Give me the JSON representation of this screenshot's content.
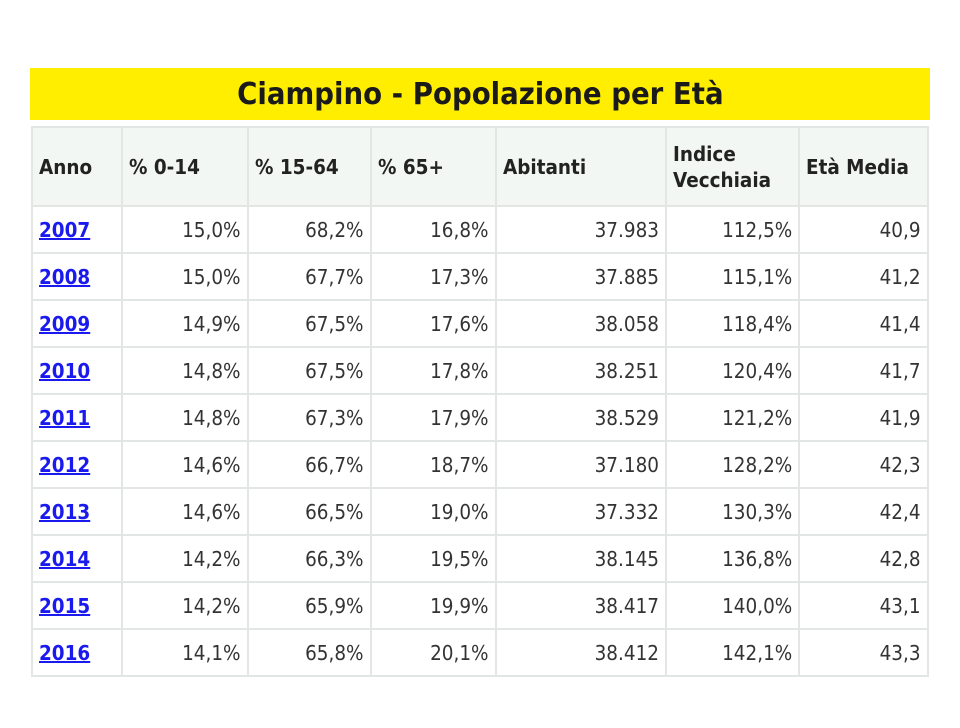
{
  "title": "Ciampino - Popolazione per Età",
  "colors": {
    "title_background": "#ffee00",
    "header_background": "#f3f7f3",
    "link": "#1a1aee",
    "border": "#e3e7e3"
  },
  "table": {
    "headers": [
      "Anno",
      "% 0-14",
      "% 15-64",
      "% 65+",
      "Abitanti",
      "Indice Vecchiaia",
      "Età Media"
    ],
    "rows": [
      [
        "2007",
        "15,0%",
        "68,2%",
        "16,8%",
        "37.983",
        "112,5%",
        "40,9"
      ],
      [
        "2008",
        "15,0%",
        "67,7%",
        "17,3%",
        "37.885",
        "115,1%",
        "41,2"
      ],
      [
        "2009",
        "14,9%",
        "67,5%",
        "17,6%",
        "38.058",
        "118,4%",
        "41,4"
      ],
      [
        "2010",
        "14,8%",
        "67,5%",
        "17,8%",
        "38.251",
        "120,4%",
        "41,7"
      ],
      [
        "2011",
        "14,8%",
        "67,3%",
        "17,9%",
        "38.529",
        "121,2%",
        "41,9"
      ],
      [
        "2012",
        "14,6%",
        "66,7%",
        "18,7%",
        "37.180",
        "128,2%",
        "42,3"
      ],
      [
        "2013",
        "14,6%",
        "66,5%",
        "19,0%",
        "37.332",
        "130,3%",
        "42,4"
      ],
      [
        "2014",
        "14,2%",
        "66,3%",
        "19,5%",
        "38.145",
        "136,8%",
        "42,8"
      ],
      [
        "2015",
        "14,2%",
        "65,9%",
        "19,9%",
        "38.417",
        "140,0%",
        "43,1"
      ],
      [
        "2016",
        "14,1%",
        "65,8%",
        "20,1%",
        "38.412",
        "142,1%",
        "43,3"
      ]
    ]
  }
}
